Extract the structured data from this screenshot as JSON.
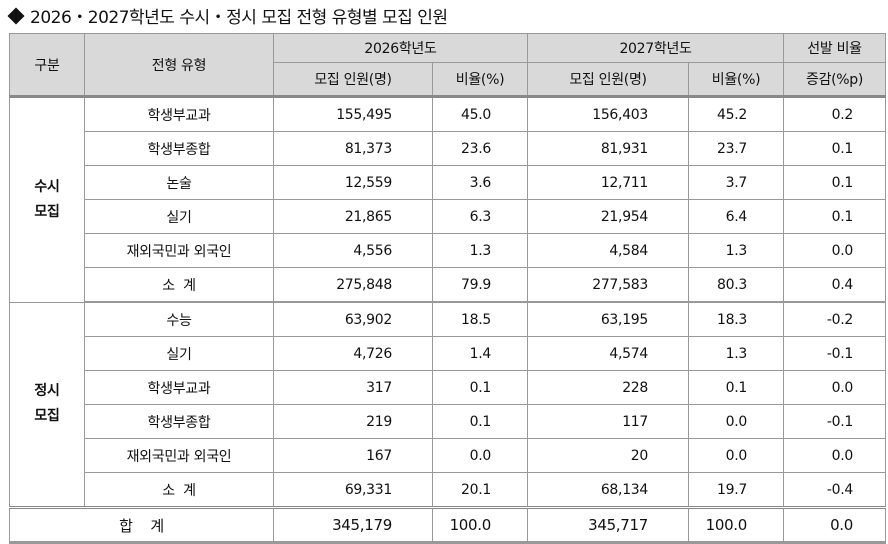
{
  "title": "2026・2027학년도 수시・정시 모집 전형 유형별 모집 인원",
  "icons": {
    "bullet": "black-diamond"
  },
  "header": {
    "category": "구분",
    "type": "전형 유형",
    "year1": "2026학년도",
    "year2": "2027학년도",
    "change_line1": "선발 비율",
    "change_line2": "증감(%p)",
    "count": "모집 인원(명)",
    "ratio": "비율(%)"
  },
  "groups": [
    {
      "label_line1": "수시",
      "label_line2": "모집",
      "rows": [
        {
          "type": "학생부교과",
          "c26": "155,495",
          "r26": "45.0",
          "c27": "156,403",
          "r27": "45.2",
          "diff": "0.2"
        },
        {
          "type": "학생부종합",
          "c26": "81,373",
          "r26": "23.6",
          "c27": "81,931",
          "r27": "23.7",
          "diff": "0.1"
        },
        {
          "type": "논술",
          "c26": "12,559",
          "r26": "3.6",
          "c27": "12,711",
          "r27": "3.7",
          "diff": "0.1"
        },
        {
          "type": "실기",
          "c26": "21,865",
          "r26": "6.3",
          "c27": "21,954",
          "r27": "6.4",
          "diff": "0.1"
        },
        {
          "type": "재외국민과 외국인",
          "c26": "4,556",
          "r26": "1.3",
          "c27": "4,584",
          "r27": "1.3",
          "diff": "0.0"
        },
        {
          "type": "소  계",
          "c26": "275,848",
          "r26": "79.9",
          "c27": "277,583",
          "r27": "80.3",
          "diff": "0.4"
        }
      ]
    },
    {
      "label_line1": "정시",
      "label_line2": "모집",
      "rows": [
        {
          "type": "수능",
          "c26": "63,902",
          "r26": "18.5",
          "c27": "63,195",
          "r27": "18.3",
          "diff": "-0.2"
        },
        {
          "type": "실기",
          "c26": "4,726",
          "r26": "1.4",
          "c27": "4,574",
          "r27": "1.3",
          "diff": "-0.1"
        },
        {
          "type": "학생부교과",
          "c26": "317",
          "r26": "0.1",
          "c27": "228",
          "r27": "0.1",
          "diff": "0.0"
        },
        {
          "type": "학생부종합",
          "c26": "219",
          "r26": "0.1",
          "c27": "117",
          "r27": "0.0",
          "diff": "-0.1"
        },
        {
          "type": "재외국민과 외국인",
          "c26": "167",
          "r26": "0.0",
          "c27": "20",
          "r27": "0.0",
          "diff": "0.0"
        },
        {
          "type": "소  계",
          "c26": "69,331",
          "r26": "20.1",
          "c27": "68,134",
          "r27": "19.7",
          "diff": "-0.4"
        }
      ]
    }
  ],
  "total": {
    "label": "합    계",
    "c26": "345,179",
    "r26": "100.0",
    "c27": "345,717",
    "r27": "100.0",
    "diff": "0.0"
  }
}
